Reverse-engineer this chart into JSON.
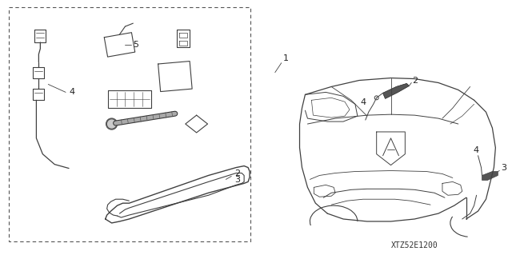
{
  "background_color": "#ffffff",
  "diagram_code": "XTZ52E1200",
  "fig_width": 6.4,
  "fig_height": 3.19,
  "dpi": 100,
  "line_color": "#404040",
  "line_width": 0.7
}
